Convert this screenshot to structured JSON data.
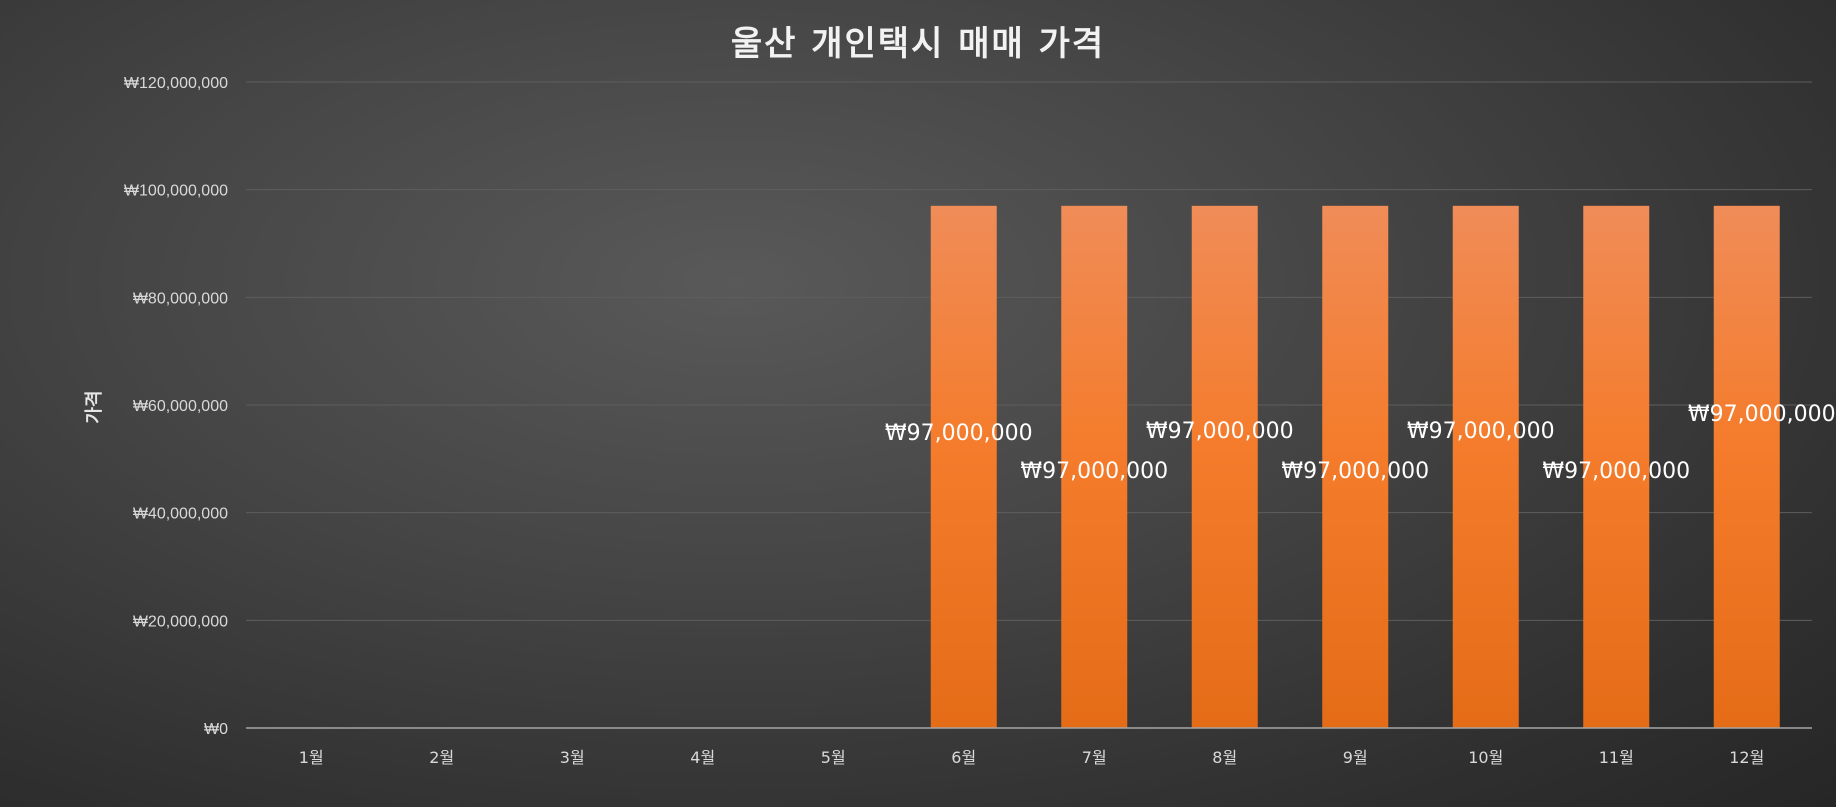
{
  "chart_data": {
    "type": "bar",
    "title": "울산 개인택시 매매 가격",
    "xlabel": "",
    "ylabel": "가격",
    "categories": [
      "1월",
      "2월",
      "3월",
      "4월",
      "5월",
      "6월",
      "7월",
      "8월",
      "9월",
      "10월",
      "11월",
      "12월"
    ],
    "series": [
      {
        "values": [
          null,
          null,
          null,
          null,
          null,
          97000000,
          97000000,
          97000000,
          97000000,
          97000000,
          97000000,
          97000000
        ],
        "data_labels": [
          "",
          "",
          "",
          "",
          "",
          "₩97,000,000",
          "₩97,000,000",
          "₩97,000,000",
          "₩97,000,000",
          "₩97,000,000",
          "₩97,000,000",
          "₩97,000,000"
        ]
      }
    ],
    "ylim": [
      0,
      120000000
    ],
    "yticks": [
      0,
      20000000,
      40000000,
      60000000,
      80000000,
      100000000,
      120000000
    ],
    "ytick_labels": [
      "₩0",
      "₩20,000,000",
      "₩40,000,000",
      "₩60,000,000",
      "₩80,000,000",
      "₩100,000,000",
      "₩120,000,000"
    ],
    "grid": true,
    "legend": "none",
    "bar_color_top": "#f08c58",
    "bar_color_bottom": "#e56c17"
  }
}
